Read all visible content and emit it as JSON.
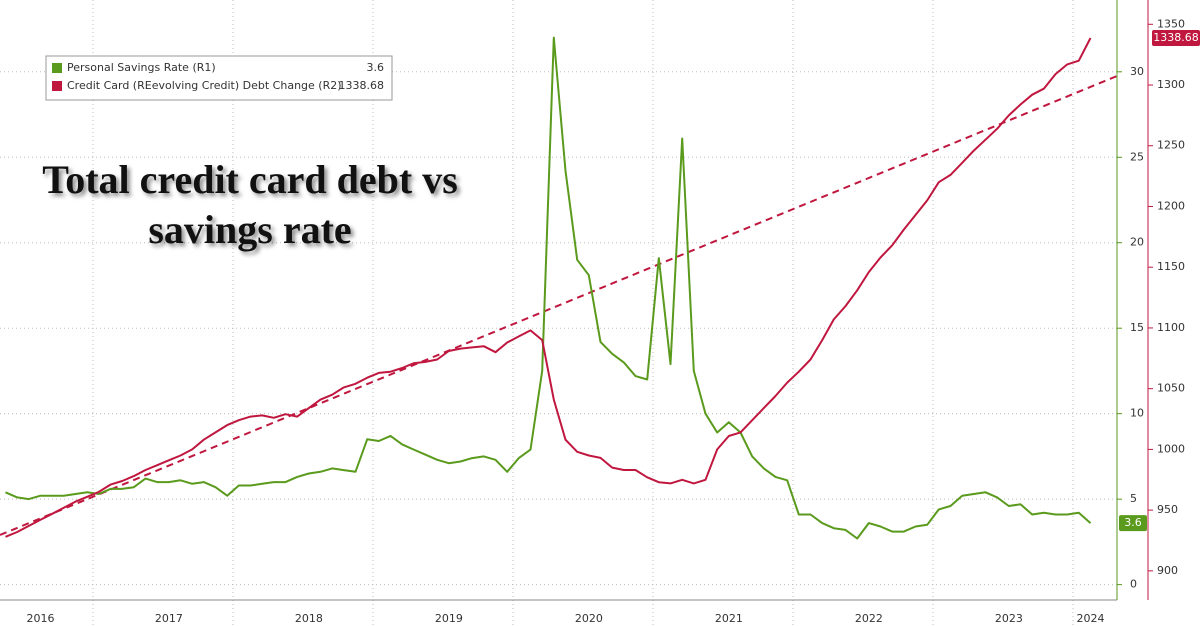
{
  "chart_data": {
    "type": "line",
    "title": "Total credit card debt vs savings rate",
    "categories": [
      null,
      null,
      null,
      "2016",
      null,
      null,
      null,
      null,
      null,
      null,
      null,
      null,
      null,
      null,
      "2017",
      null,
      null,
      null,
      null,
      null,
      null,
      null,
      null,
      null,
      null,
      null,
      "2018",
      null,
      null,
      null,
      null,
      null,
      null,
      null,
      null,
      null,
      null,
      null,
      "2019",
      null,
      null,
      null,
      null,
      null,
      null,
      null,
      null,
      null,
      null,
      null,
      "2020",
      null,
      null,
      null,
      null,
      null,
      null,
      null,
      null,
      null,
      null,
      null,
      "2021",
      null,
      null,
      null,
      null,
      null,
      null,
      null,
      null,
      null,
      null,
      null,
      "2022",
      null,
      null,
      null,
      null,
      null,
      null,
      null,
      null,
      null,
      null,
      null,
      "2023",
      null,
      null,
      null,
      null,
      null,
      null,
      "2024"
    ],
    "series": [
      {
        "name": "Personal Savings Rate (R1)",
        "color": "#5a9a1c",
        "axis": "y",
        "values": [
          5.4,
          5.1,
          5.0,
          5.2,
          5.2,
          5.2,
          5.3,
          5.4,
          5.3,
          5.6,
          5.6,
          5.7,
          6.2,
          6.0,
          6.0,
          6.1,
          5.9,
          6.0,
          5.7,
          5.2,
          5.8,
          5.8,
          5.9,
          6.0,
          6.0,
          6.3,
          6.5,
          6.6,
          6.8,
          6.7,
          6.6,
          8.5,
          8.4,
          8.7,
          8.2,
          7.9,
          7.6,
          7.3,
          7.1,
          7.2,
          7.4,
          7.5,
          7.3,
          6.6,
          7.4,
          7.9,
          12.5,
          32.0,
          24.2,
          19.0,
          18.1,
          14.2,
          13.5,
          13.0,
          12.2,
          12.0,
          19.1,
          12.9,
          26.1,
          12.5,
          10.0,
          8.9,
          9.5,
          8.9,
          7.5,
          6.8,
          6.3,
          6.1,
          4.1,
          4.1,
          3.6,
          3.3,
          3.2,
          2.7,
          3.6,
          3.4,
          3.1,
          3.1,
          3.4,
          3.5,
          4.4,
          4.6,
          5.2,
          5.3,
          5.4,
          5.1,
          4.6,
          4.7,
          4.1,
          4.2,
          4.1,
          4.1,
          4.2,
          3.6
        ]
      },
      {
        "name": "Credit Card (REevolving Credit) Debt Change (R2)",
        "color": "#c0173f",
        "axis": "y2",
        "values": [
          928,
          932,
          937,
          942,
          947,
          952,
          957,
          961,
          965,
          971,
          974,
          978,
          983,
          987,
          991,
          995,
          1000,
          1008,
          1014,
          1020,
          1024,
          1027,
          1028,
          1026,
          1029,
          1027,
          1034,
          1041,
          1045,
          1051,
          1054,
          1059,
          1063,
          1064,
          1067,
          1071,
          1072,
          1074,
          1081,
          1083,
          1084,
          1085,
          1080,
          1088,
          1093,
          1098,
          1090,
          1041,
          1008,
          998,
          995,
          993,
          985,
          983,
          983,
          977,
          973,
          972,
          975,
          972,
          975,
          1000,
          1011,
          1014,
          1024,
          1034,
          1044,
          1055,
          1064,
          1074,
          1090,
          1107,
          1118,
          1131,
          1146,
          1158,
          1168,
          1181,
          1193,
          1205,
          1220,
          1226,
          1236,
          1246,
          1255,
          1264,
          1275,
          1284,
          1292,
          1297,
          1309,
          1317,
          1320,
          1338.68
        ]
      }
    ],
    "ylim": [
      -0.9,
      34.2
    ],
    "yticks": [
      0,
      5,
      10,
      15,
      20,
      25,
      30
    ],
    "y2lim": [
      876,
      1370
    ],
    "y2ticks": [
      900,
      950,
      1000,
      1050,
      1100,
      1150,
      1200,
      1250,
      1300,
      1350
    ],
    "grid": true,
    "legend": "upper left"
  }
}
